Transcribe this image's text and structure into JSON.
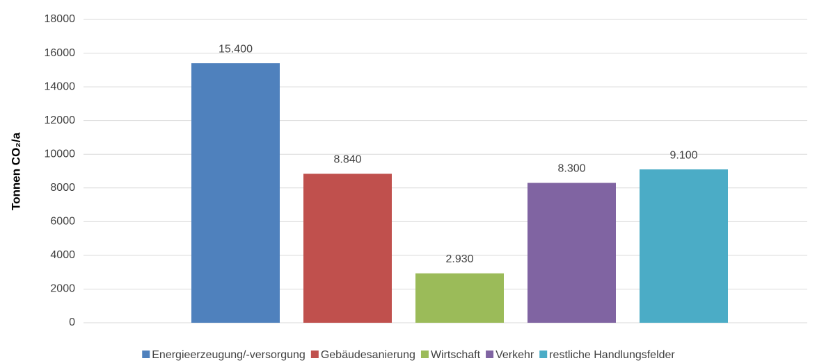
{
  "chart_data": {
    "type": "bar",
    "y_label": "Tonnen CO₂/a",
    "categories": [
      null
    ],
    "series": [
      {
        "name": "Energieerzeugung/-versorgung",
        "color": "#4f81bd",
        "values": [
          15400
        ],
        "value_labels": [
          "15.400"
        ]
      },
      {
        "name": "Gebäudesanierung",
        "color": "#c0504d",
        "values": [
          8840
        ],
        "value_labels": [
          "8.840"
        ]
      },
      {
        "name": "Wirtschaft",
        "color": "#9bbb59",
        "values": [
          2930
        ],
        "value_labels": [
          "2.930"
        ]
      },
      {
        "name": "Verkehr",
        "color": "#8064a2",
        "values": [
          8300
        ],
        "value_labels": [
          "8.300"
        ]
      },
      {
        "name": "restliche Handlungsfelder",
        "color": "#4bacc6",
        "values": [
          9100
        ],
        "value_labels": [
          "9.100"
        ]
      }
    ],
    "ylim": [
      0,
      18000
    ],
    "yticks": [
      0,
      2000,
      4000,
      6000,
      8000,
      10000,
      12000,
      14000,
      16000,
      18000
    ],
    "grid": true,
    "legend": "bottom"
  }
}
